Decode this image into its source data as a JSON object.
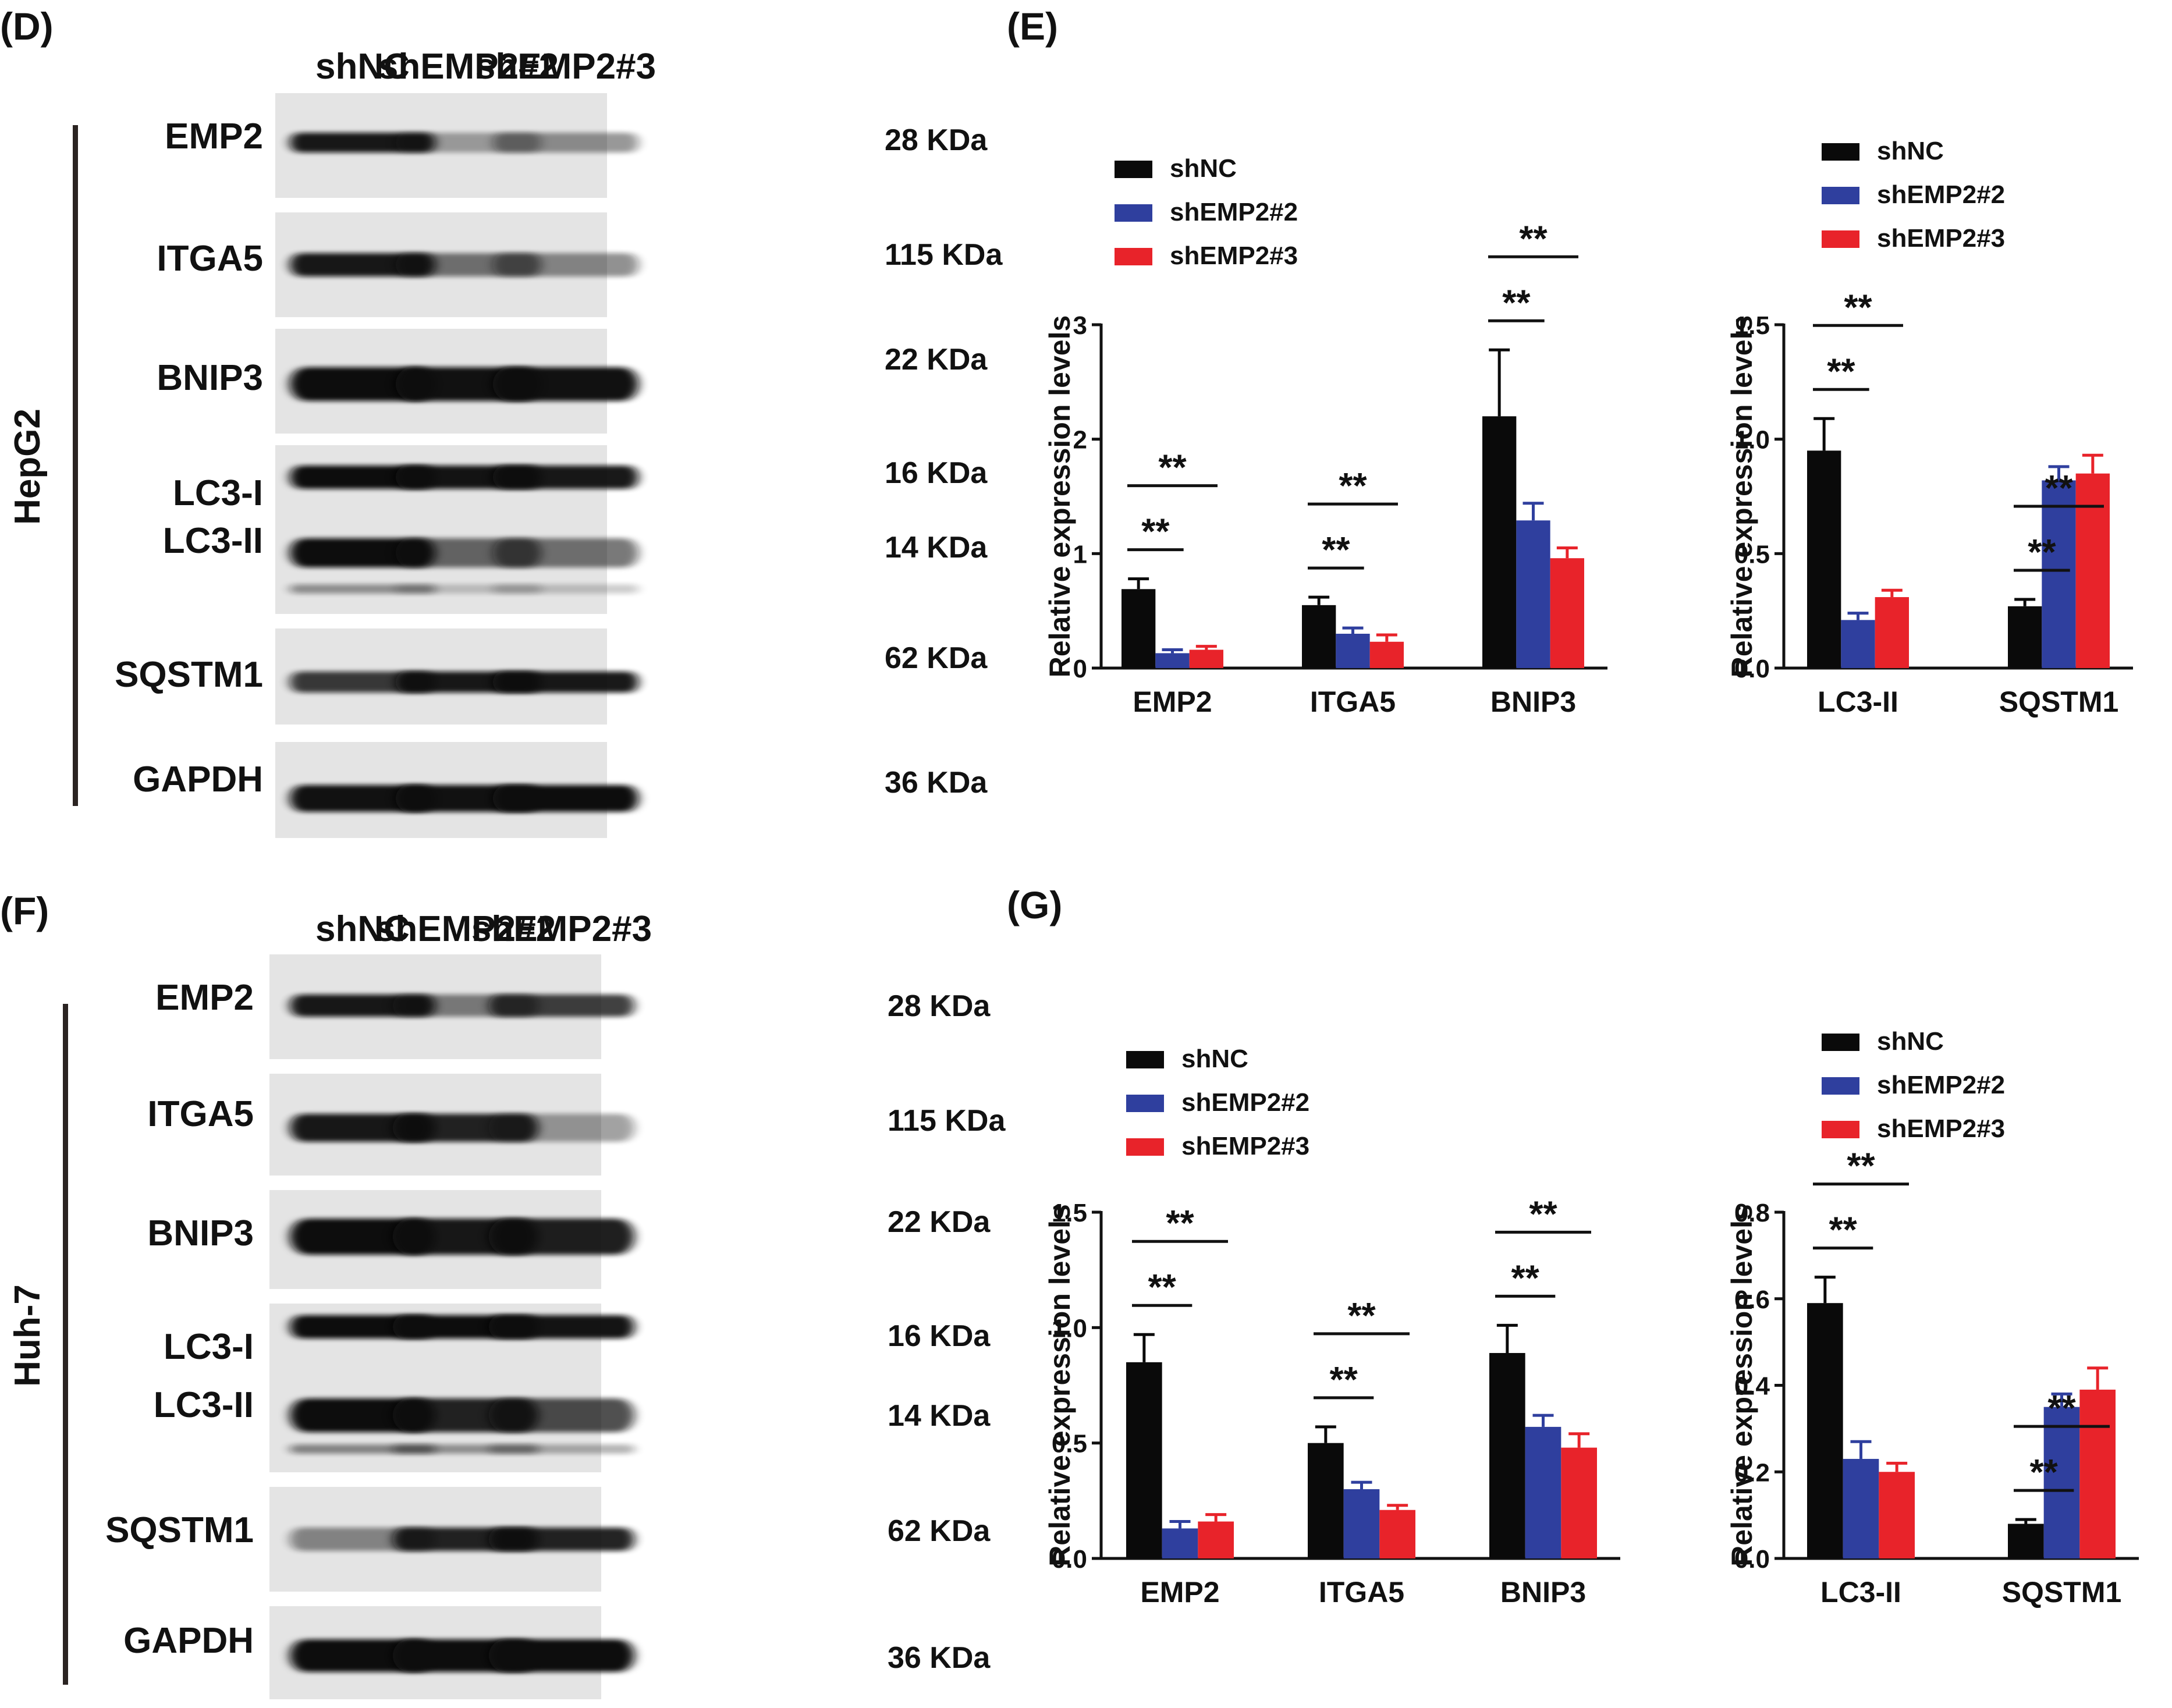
{
  "panels": {
    "d_letter": "(D)",
    "e_letter": "(E)",
    "f_letter": "(F)",
    "g_letter": "(G)"
  },
  "blot_top": {
    "cell_line": "HepG2",
    "lanes": [
      "shNC",
      "shEMP2#2",
      "shEMP2#3"
    ],
    "rows": [
      {
        "label": "EMP2",
        "size": "28 KDa"
      },
      {
        "label": "ITGA5",
        "size": "115 KDa"
      },
      {
        "label": "BNIP3",
        "size": "22 KDa"
      },
      {
        "label": "LC3-I",
        "size": "16 KDa"
      },
      {
        "label": "LC3-II",
        "size": "14 KDa"
      },
      {
        "label": "SQSTM1",
        "size": "62 KDa"
      },
      {
        "label": "GAPDH",
        "size": "36 KDa"
      }
    ]
  },
  "blot_bottom": {
    "cell_line": "Huh-7",
    "lanes": [
      "shNC",
      "shEMP2#2",
      "shEMP2#3"
    ],
    "rows": [
      {
        "label": "EMP2",
        "size": "28 KDa"
      },
      {
        "label": "ITGA5",
        "size": "115 KDa"
      },
      {
        "label": "BNIP3",
        "size": "22 KDa"
      },
      {
        "label": "LC3-I",
        "size": "16 KDa"
      },
      {
        "label": "LC3-II",
        "size": "14 KDa"
      },
      {
        "label": "SQSTM1",
        "size": "62 KDa"
      },
      {
        "label": "GAPDH",
        "size": "36 KDa"
      }
    ]
  },
  "colors": {
    "shNC": "#0a0a0a",
    "shEMP2#2": "#2f3f9e",
    "shEMP2#3": "#e8232a"
  },
  "significance_mark": "**",
  "chart_data": [
    {
      "panel": "E-left",
      "type": "bar",
      "categories": [
        "EMP2",
        "ITGA5",
        "BNIP3"
      ],
      "series": [
        {
          "name": "shNC",
          "values": [
            0.69,
            0.55,
            2.2
          ],
          "errors": [
            0.09,
            0.07,
            0.58
          ]
        },
        {
          "name": "shEMP2#2",
          "values": [
            0.13,
            0.3,
            1.29
          ],
          "errors": [
            0.03,
            0.05,
            0.15
          ]
        },
        {
          "name": "shEMP2#3",
          "values": [
            0.16,
            0.23,
            0.96
          ],
          "errors": [
            0.03,
            0.06,
            0.09
          ]
        }
      ],
      "ylabel": "Relative expression levels",
      "ylim": [
        0,
        3
      ],
      "yticks": [
        "0",
        "1",
        "2",
        "3"
      ],
      "legend": "top-left"
    },
    {
      "panel": "E-right",
      "type": "bar",
      "categories": [
        "LC3-II",
        "SQSTM1"
      ],
      "series": [
        {
          "name": "shNC",
          "values": [
            0.95,
            0.27
          ],
          "errors": [
            0.14,
            0.03
          ]
        },
        {
          "name": "shEMP2#2",
          "values": [
            0.21,
            0.82
          ],
          "errors": [
            0.03,
            0.06
          ]
        },
        {
          "name": "shEMP2#3",
          "values": [
            0.31,
            0.85
          ],
          "errors": [
            0.03,
            0.08
          ]
        }
      ],
      "ylabel": "Relative expression levels",
      "ylim": [
        0,
        1.5
      ],
      "yticks": [
        "0.0",
        "0.5",
        "1.0",
        "1.5"
      ],
      "legend": "top-left"
    },
    {
      "panel": "G-left",
      "type": "bar",
      "categories": [
        "EMP2",
        "ITGA5",
        "BNIP3"
      ],
      "series": [
        {
          "name": "shNC",
          "values": [
            0.85,
            0.5,
            0.89
          ],
          "errors": [
            0.12,
            0.07,
            0.12
          ]
        },
        {
          "name": "shEMP2#2",
          "values": [
            0.13,
            0.3,
            0.57
          ],
          "errors": [
            0.03,
            0.03,
            0.05
          ]
        },
        {
          "name": "shEMP2#3",
          "values": [
            0.16,
            0.21,
            0.48
          ],
          "errors": [
            0.03,
            0.02,
            0.06
          ]
        }
      ],
      "ylabel": "Relative expression levels",
      "ylim": [
        0,
        1.5
      ],
      "yticks": [
        "0.0",
        "0.5",
        "1.0",
        "1.5"
      ],
      "legend": "top-left"
    },
    {
      "panel": "G-right",
      "type": "bar",
      "categories": [
        "LC3-II",
        "SQSTM1"
      ],
      "series": [
        {
          "name": "shNC",
          "values": [
            0.59,
            0.08
          ],
          "errors": [
            0.06,
            0.01
          ]
        },
        {
          "name": "shEMP2#2",
          "values": [
            0.23,
            0.35
          ],
          "errors": [
            0.04,
            0.03
          ]
        },
        {
          "name": "shEMP2#3",
          "values": [
            0.2,
            0.39
          ],
          "errors": [
            0.02,
            0.05
          ]
        }
      ],
      "ylabel": "Relative expression levels",
      "ylim": [
        0,
        0.8
      ],
      "yticks": [
        "0.0",
        "0.2",
        "0.4",
        "0.6",
        "0.8"
      ],
      "legend": "top-left"
    }
  ]
}
